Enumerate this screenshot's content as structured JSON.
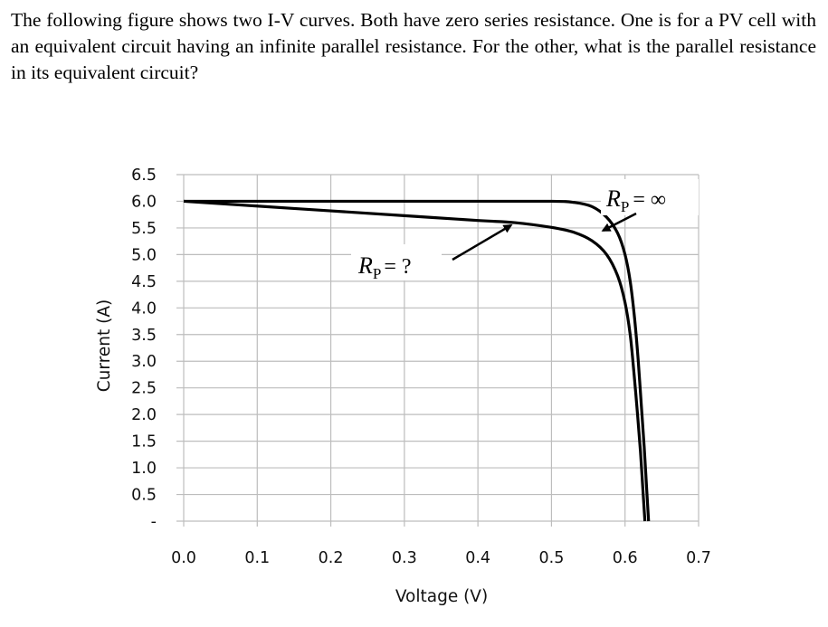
{
  "question": {
    "text": "The following figure shows two I-V curves. Both have zero series resistance. One is for a PV cell with an equivalent circuit having an infinite parallel resistance. For the other, what is the parallel resistance in its equivalent circuit?"
  },
  "chart_data": {
    "type": "line",
    "title": "",
    "xlabel": "Voltage (V)",
    "ylabel": "Current (A)",
    "xlim": [
      0.0,
      0.7
    ],
    "ylim": [
      0.0,
      6.5
    ],
    "grid": true,
    "x_ticks": [
      "0.0",
      "0.1",
      "0.2",
      "0.3",
      "0.4",
      "0.5",
      "0.6",
      "0.7"
    ],
    "y_ticks": [
      "6.5",
      "6.0",
      "5.5",
      "5.0",
      "4.5",
      "4.0",
      "3.5",
      "3.0",
      "2.5",
      "2.0",
      "1.5",
      "1.0",
      "0.5",
      "-"
    ],
    "series": [
      {
        "x": [
          0.0,
          0.1,
          0.2,
          0.3,
          0.4,
          0.5,
          0.53,
          0.555,
          0.575,
          0.59,
          0.6,
          0.607,
          0.613,
          0.618,
          0.622,
          0.626,
          0.629,
          0.632
        ],
        "y": [
          6.0,
          6.0,
          6.0,
          6.0,
          6.0,
          6.0,
          5.98,
          5.9,
          5.7,
          5.4,
          5.0,
          4.5,
          3.8,
          3.0,
          2.2,
          1.4,
          0.7,
          0.0
        ]
      },
      {
        "x": [
          0.0,
          0.1,
          0.2,
          0.3,
          0.4,
          0.45,
          0.5,
          0.53,
          0.555,
          0.575,
          0.59,
          0.6,
          0.607,
          0.612,
          0.617,
          0.621,
          0.624,
          0.627
        ],
        "y": [
          6.0,
          5.91,
          5.82,
          5.73,
          5.64,
          5.6,
          5.51,
          5.42,
          5.26,
          5.0,
          4.6,
          4.1,
          3.5,
          2.8,
          2.0,
          1.3,
          0.65,
          0.0
        ]
      }
    ],
    "annotations": [
      {
        "text_main": "R",
        "text_sub": "P",
        "text_rest": "= ?",
        "arrow_to": [
          0.445,
          5.55
        ]
      },
      {
        "text_main": "R",
        "text_sub": "P",
        "text_rest": "= ∞",
        "arrow_to": [
          0.57,
          5.45
        ]
      }
    ]
  }
}
